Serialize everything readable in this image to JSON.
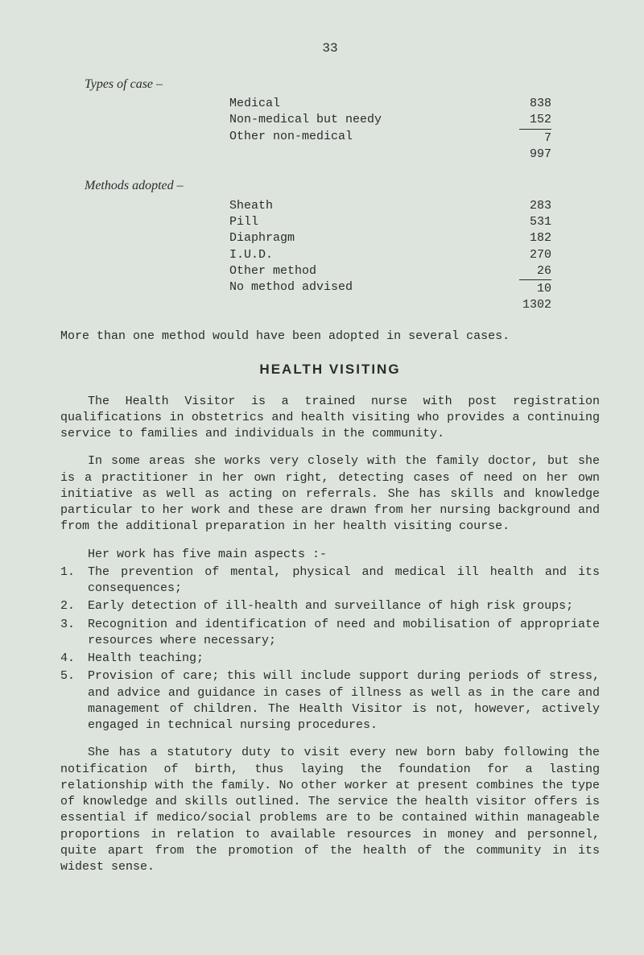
{
  "page_number": "33",
  "types_of_case": {
    "heading": "Types of case –",
    "rows": [
      {
        "label": "Medical",
        "value": "838"
      },
      {
        "label": "Non-medical but needy",
        "value": "152"
      },
      {
        "label": "Other non-medical",
        "value": "7"
      }
    ],
    "total": "997"
  },
  "methods_adopted": {
    "heading": "Methods adopted –",
    "rows": [
      {
        "label": "Sheath",
        "value": "283"
      },
      {
        "label": "Pill",
        "value": "531"
      },
      {
        "label": "Diaphragm",
        "value": "182"
      },
      {
        "label": "I.U.D.",
        "value": "270"
      },
      {
        "label": "Other method",
        "value": "26"
      },
      {
        "label": "No method advised",
        "value": "10"
      }
    ],
    "total": "1302"
  },
  "note": "More than one method would have been adopted in several cases.",
  "section_heading": "HEALTH VISITING",
  "paras": [
    "The Health Visitor is a trained nurse with post registration qualifications in obstetrics and health visiting who provides a continuing service to families and individuals in the community.",
    "In some areas she works very closely with the family doctor, but she is a practitioner in her own right, detecting cases of need on her own initiative as well as acting on referrals. She has skills and knowledge particular to her work and these are drawn from her nursing background and from the additional preparation in her health visiting course."
  ],
  "list_intro": "Her work has five main aspects :-",
  "list": [
    {
      "n": "1.",
      "t": "The prevention of mental, physical and medical ill health and its consequences;"
    },
    {
      "n": "2.",
      "t": "Early detection of ill-health and surveillance of high risk groups;"
    },
    {
      "n": "3.",
      "t": "Recognition and identification of need and mobilisation of appropriate resources where necessary;"
    },
    {
      "n": "4.",
      "t": "Health teaching;"
    },
    {
      "n": "5.",
      "t": "Provision of care; this will include support during periods of stress, and advice and guidance in cases of illness as well as in the care and management of children. The Health Visitor is not, however, actively engaged in technical nursing procedures."
    }
  ],
  "closing": "She has a statutory duty to visit every new born baby following the notification of birth, thus laying the foundation for a lasting relationship with the family. No other worker at present combines the type of knowledge and skills outlined. The service the health visitor offers is essential if medico/social problems are to be contained within manageable proportions in relation to available resources in money and personnel, quite apart from the promotion of the health of the community in its widest sense."
}
